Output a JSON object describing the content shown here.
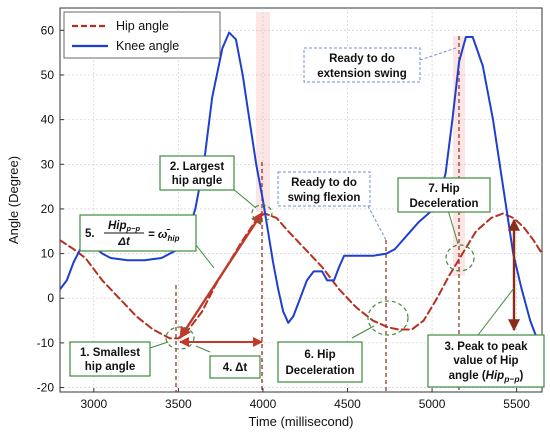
{
  "chart_data": {
    "type": "line",
    "xlabel": "Time (millisecond)",
    "ylabel": "Angle (Degree)",
    "xlim": [
      2800,
      5650
    ],
    "ylim": [
      -21,
      65
    ],
    "xticks": [
      3000,
      3500,
      4000,
      4500,
      5000,
      5500
    ],
    "yticks": [
      -20,
      -10,
      0,
      10,
      20,
      30,
      40,
      50,
      60
    ],
    "grid": true,
    "legend_position": "top-left",
    "series": [
      {
        "name": "Hip angle",
        "color": "#b5301f",
        "style": "dashed",
        "points": [
          [
            2800,
            13
          ],
          [
            2880,
            11
          ],
          [
            2950,
            9
          ],
          [
            3050,
            4
          ],
          [
            3150,
            0
          ],
          [
            3250,
            -4
          ],
          [
            3350,
            -7
          ],
          [
            3450,
            -9
          ],
          [
            3500,
            -9
          ],
          [
            3560,
            -7
          ],
          [
            3640,
            -3
          ],
          [
            3720,
            3
          ],
          [
            3800,
            8
          ],
          [
            3880,
            13
          ],
          [
            3960,
            17.5
          ],
          [
            4010,
            19
          ],
          [
            4080,
            18
          ],
          [
            4150,
            15
          ],
          [
            4250,
            11
          ],
          [
            4350,
            7
          ],
          [
            4450,
            2
          ],
          [
            4550,
            -2
          ],
          [
            4650,
            -5
          ],
          [
            4740,
            -6.5
          ],
          [
            4800,
            -7
          ],
          [
            4880,
            -7
          ],
          [
            4950,
            -5
          ],
          [
            5030,
            0
          ],
          [
            5100,
            5
          ],
          [
            5180,
            10
          ],
          [
            5260,
            15
          ],
          [
            5350,
            18
          ],
          [
            5420,
            19
          ],
          [
            5480,
            18
          ],
          [
            5540,
            16
          ],
          [
            5600,
            13
          ],
          [
            5650,
            10
          ]
        ]
      },
      {
        "name": "Knee angle",
        "color": "#1f3fd1",
        "style": "solid",
        "points": [
          [
            2800,
            2
          ],
          [
            2840,
            4
          ],
          [
            2880,
            8
          ],
          [
            2920,
            11
          ],
          [
            2960,
            12
          ],
          [
            3000,
            11.5
          ],
          [
            3050,
            10
          ],
          [
            3100,
            9
          ],
          [
            3200,
            8.5
          ],
          [
            3300,
            8.5
          ],
          [
            3400,
            9
          ],
          [
            3450,
            10
          ],
          [
            3500,
            11
          ],
          [
            3550,
            14
          ],
          [
            3600,
            20
          ],
          [
            3650,
            30
          ],
          [
            3700,
            45
          ],
          [
            3760,
            56
          ],
          [
            3800,
            59.5
          ],
          [
            3840,
            58
          ],
          [
            3880,
            50
          ],
          [
            3920,
            40
          ],
          [
            3960,
            30
          ],
          [
            4000,
            22
          ],
          [
            4030,
            15
          ],
          [
            4060,
            8
          ],
          [
            4090,
            2
          ],
          [
            4120,
            -3
          ],
          [
            4150,
            -5.5
          ],
          [
            4180,
            -4
          ],
          [
            4220,
            0
          ],
          [
            4260,
            4
          ],
          [
            4300,
            6
          ],
          [
            4350,
            6
          ],
          [
            4380,
            4
          ],
          [
            4420,
            4
          ],
          [
            4450,
            7
          ],
          [
            4480,
            9.5
          ],
          [
            4550,
            9.5
          ],
          [
            4650,
            9.5
          ],
          [
            4730,
            10
          ],
          [
            4780,
            11
          ],
          [
            4850,
            14
          ],
          [
            4920,
            17
          ],
          [
            4980,
            19
          ],
          [
            5030,
            21
          ],
          [
            5080,
            28
          ],
          [
            5120,
            40
          ],
          [
            5160,
            53
          ],
          [
            5200,
            58.5
          ],
          [
            5240,
            58.5
          ],
          [
            5300,
            52
          ],
          [
            5360,
            40
          ],
          [
            5420,
            25
          ],
          [
            5480,
            10
          ],
          [
            5530,
            2
          ],
          [
            5580,
            -5
          ],
          [
            5620,
            -9
          ],
          [
            5650,
            -10
          ]
        ]
      }
    ]
  },
  "legend": {
    "hip_label": "Hip angle",
    "knee_label": "Knee angle"
  },
  "annotations": {
    "a1_line1": "1. Smallest",
    "a1_line2": "hip angle",
    "a2_line1": "2. Largest",
    "a2_line2": "hip angle",
    "a3_line1": "3. Peak to peak",
    "a3_line2": "value of Hip",
    "a3_line3_prefix": "angle (",
    "a3_line3_sym": "Hip",
    "a3_line3_sub": "p−p",
    "a3_line3_suffix": ")",
    "a4": "4. Δt",
    "a5_prefix": "5.",
    "a5_num_sym": "Hip",
    "a5_num_sub": "p−p",
    "a5_den": "Δt",
    "a5_rhs": "= ω̄",
    "a5_rhs_sub": "hip",
    "a6_line1": "6. Hip",
    "a6_line2": "Deceleration",
    "a7_line1": "7. Hip",
    "a7_line2": "Deceleration",
    "swing_flexion_line1": "Ready to do",
    "swing_flexion_line2": "swing flexion",
    "ext_swing_line1": "Ready to do",
    "ext_swing_line2": "extension swing"
  }
}
